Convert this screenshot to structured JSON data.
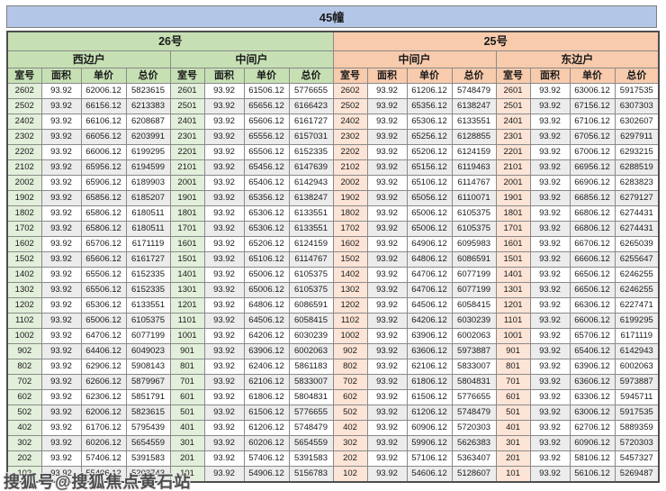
{
  "title": "45幢",
  "watermark": "搜狐号@搜狐焦点黄石站",
  "sections": [
    {
      "label": "26号",
      "units": [
        "西边户",
        "中间户"
      ]
    },
    {
      "label": "25号",
      "units": [
        "中间户",
        "东边户"
      ]
    }
  ],
  "column_headers": [
    "室号",
    "面积",
    "单价",
    "总价"
  ],
  "colors": {
    "title_bg": "#b4c6e7",
    "green_header": "#c6e0b4",
    "green_cell": "#e2efda",
    "orange_header": "#f8cbad",
    "orange_cell": "#fce4d6",
    "row_base": "#ffffff",
    "row_alt": "#ececec",
    "grid_border": "#8a8a8a",
    "text": "#1a1a1a",
    "watermark_color": "#4d4d4d"
  },
  "rows": [
    [
      "2602",
      "93.92",
      "62006.12",
      "5823615",
      "2601",
      "93.92",
      "61506.12",
      "5776655",
      "2602",
      "93.92",
      "61206.12",
      "5748479",
      "2601",
      "93.92",
      "63006.12",
      "5917535"
    ],
    [
      "2502",
      "93.92",
      "66156.12",
      "6213383",
      "2501",
      "93.92",
      "65656.12",
      "6166423",
      "2502",
      "93.92",
      "65356.12",
      "6138247",
      "2501",
      "93.92",
      "67156.12",
      "6307303"
    ],
    [
      "2402",
      "93.92",
      "66106.12",
      "6208687",
      "2401",
      "93.92",
      "65606.12",
      "6161727",
      "2402",
      "93.92",
      "65306.12",
      "6133551",
      "2401",
      "93.92",
      "67106.12",
      "6302607"
    ],
    [
      "2302",
      "93.92",
      "66056.12",
      "6203991",
      "2301",
      "93.92",
      "65556.12",
      "6157031",
      "2302",
      "93.92",
      "65256.12",
      "6128855",
      "2301",
      "93.92",
      "67056.12",
      "6297911"
    ],
    [
      "2202",
      "93.92",
      "66006.12",
      "6199295",
      "2201",
      "93.92",
      "65506.12",
      "6152335",
      "2202",
      "93.92",
      "65206.12",
      "6124159",
      "2201",
      "93.92",
      "67006.12",
      "6293215"
    ],
    [
      "2102",
      "93.92",
      "65956.12",
      "6194599",
      "2101",
      "93.92",
      "65456.12",
      "6147639",
      "2102",
      "93.92",
      "65156.12",
      "6119463",
      "2101",
      "93.92",
      "66956.12",
      "6288519"
    ],
    [
      "2002",
      "93.92",
      "65906.12",
      "6189903",
      "2001",
      "93.92",
      "65406.12",
      "6142943",
      "2002",
      "93.92",
      "65106.12",
      "6114767",
      "2001",
      "93.92",
      "66906.12",
      "6283823"
    ],
    [
      "1902",
      "93.92",
      "65856.12",
      "6185207",
      "1901",
      "93.92",
      "65356.12",
      "6138247",
      "1902",
      "93.92",
      "65056.12",
      "6110071",
      "1901",
      "93.92",
      "66856.12",
      "6279127"
    ],
    [
      "1802",
      "93.92",
      "65806.12",
      "6180511",
      "1801",
      "93.92",
      "65306.12",
      "6133551",
      "1802",
      "93.92",
      "65006.12",
      "6105375",
      "1801",
      "93.92",
      "66806.12",
      "6274431"
    ],
    [
      "1702",
      "93.92",
      "65806.12",
      "6180511",
      "1701",
      "93.92",
      "65306.12",
      "6133551",
      "1702",
      "93.92",
      "65006.12",
      "6105375",
      "1701",
      "93.92",
      "66806.12",
      "6274431"
    ],
    [
      "1602",
      "93.92",
      "65706.12",
      "6171119",
      "1601",
      "93.92",
      "65206.12",
      "6124159",
      "1602",
      "93.92",
      "64906.12",
      "6095983",
      "1601",
      "93.92",
      "66706.12",
      "6265039"
    ],
    [
      "1502",
      "93.92",
      "65606.12",
      "6161727",
      "1501",
      "93.92",
      "65106.12",
      "6114767",
      "1502",
      "93.92",
      "64806.12",
      "6086591",
      "1501",
      "93.92",
      "66606.12",
      "6255647"
    ],
    [
      "1402",
      "93.92",
      "65506.12",
      "6152335",
      "1401",
      "93.92",
      "65006.12",
      "6105375",
      "1402",
      "93.92",
      "64706.12",
      "6077199",
      "1401",
      "93.92",
      "66506.12",
      "6246255"
    ],
    [
      "1302",
      "93.92",
      "65506.12",
      "6152335",
      "1301",
      "93.92",
      "65006.12",
      "6105375",
      "1302",
      "93.92",
      "64706.12",
      "6077199",
      "1301",
      "93.92",
      "66506.12",
      "6246255"
    ],
    [
      "1202",
      "93.92",
      "65306.12",
      "6133551",
      "1201",
      "93.92",
      "64806.12",
      "6086591",
      "1202",
      "93.92",
      "64506.12",
      "6058415",
      "1201",
      "93.92",
      "66306.12",
      "6227471"
    ],
    [
      "1102",
      "93.92",
      "65006.12",
      "6105375",
      "1101",
      "93.92",
      "64506.12",
      "6058415",
      "1102",
      "93.92",
      "64206.12",
      "6030239",
      "1101",
      "93.92",
      "66006.12",
      "6199295"
    ],
    [
      "1002",
      "93.92",
      "64706.12",
      "6077199",
      "1001",
      "93.92",
      "64206.12",
      "6030239",
      "1002",
      "93.92",
      "63906.12",
      "6002063",
      "1001",
      "93.92",
      "65706.12",
      "6171119"
    ],
    [
      "902",
      "93.92",
      "64406.12",
      "6049023",
      "901",
      "93.92",
      "63906.12",
      "6002063",
      "902",
      "93.92",
      "63606.12",
      "5973887",
      "901",
      "93.92",
      "65406.12",
      "6142943"
    ],
    [
      "802",
      "93.92",
      "62906.12",
      "5908143",
      "801",
      "93.92",
      "62406.12",
      "5861183",
      "802",
      "93.92",
      "62106.12",
      "5833007",
      "801",
      "93.92",
      "63906.12",
      "6002063"
    ],
    [
      "702",
      "93.92",
      "62606.12",
      "5879967",
      "701",
      "93.92",
      "62106.12",
      "5833007",
      "702",
      "93.92",
      "61806.12",
      "5804831",
      "701",
      "93.92",
      "63606.12",
      "5973887"
    ],
    [
      "602",
      "93.92",
      "62306.12",
      "5851791",
      "601",
      "93.92",
      "61806.12",
      "5804831",
      "602",
      "93.92",
      "61506.12",
      "5776655",
      "601",
      "93.92",
      "63306.12",
      "5945711"
    ],
    [
      "502",
      "93.92",
      "62006.12",
      "5823615",
      "501",
      "93.92",
      "61506.12",
      "5776655",
      "502",
      "93.92",
      "61206.12",
      "5748479",
      "501",
      "93.92",
      "63006.12",
      "5917535"
    ],
    [
      "402",
      "93.92",
      "61706.12",
      "5795439",
      "401",
      "93.92",
      "61206.12",
      "5748479",
      "402",
      "93.92",
      "60906.12",
      "5720303",
      "401",
      "93.92",
      "62706.12",
      "5889359"
    ],
    [
      "302",
      "93.92",
      "60206.12",
      "5654559",
      "301",
      "93.92",
      "60206.12",
      "5654559",
      "302",
      "93.92",
      "59906.12",
      "5626383",
      "301",
      "93.92",
      "60906.12",
      "5720303"
    ],
    [
      "202",
      "93.92",
      "57406.12",
      "5391583",
      "201",
      "93.92",
      "57406.12",
      "5391583",
      "202",
      "93.92",
      "57106.12",
      "5363407",
      "201",
      "93.92",
      "58106.12",
      "5457327"
    ],
    [
      "102",
      "93.92",
      "55406.12",
      "5203743",
      "101",
      "93.92",
      "54906.12",
      "5156783",
      "102",
      "93.92",
      "54606.12",
      "5128607",
      "101",
      "93.92",
      "56106.12",
      "5269487"
    ]
  ]
}
